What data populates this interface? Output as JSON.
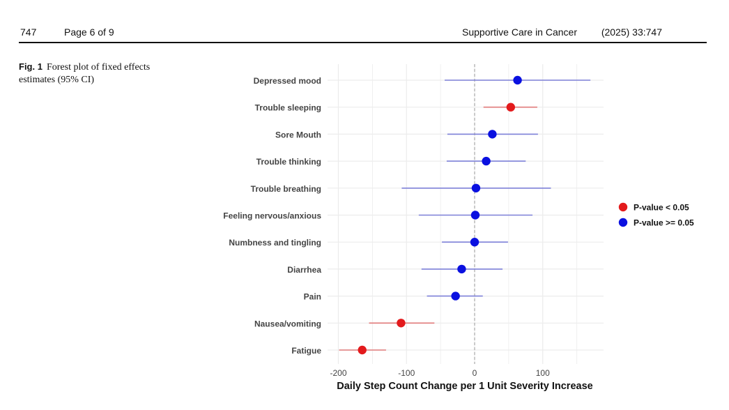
{
  "header": {
    "page_number": "747",
    "page_of": "Page 6 of 9",
    "journal": "Supportive Care in Cancer",
    "citation": "(2025) 33:747"
  },
  "figure": {
    "label": "Fig. 1",
    "caption": "Forest plot of fixed effects estimates (95% CI)"
  },
  "colors": {
    "significant": "#e31a1c",
    "nonsignificant": "#0a10e0",
    "sig_ci": "#e07a7a",
    "nonsig_ci": "#7d80d8",
    "grid": "#ececec",
    "zero_line": "#9a9a9a"
  },
  "chart_data": {
    "type": "forest",
    "title": "",
    "xlabel": "Daily Step Count Change per 1 Unit Severity Increase",
    "ylabel": "",
    "xlim": [
      -205,
      190
    ],
    "xticks": [
      -200,
      -100,
      0,
      100
    ],
    "grid": true,
    "reference_line": 0,
    "legend": {
      "position": "right",
      "entries": [
        {
          "label": "P-value < 0.05",
          "group": "significant"
        },
        {
          "label": "P-value >= 0.05",
          "group": "nonsignificant"
        }
      ]
    },
    "items": [
      {
        "label": "Depressed mood",
        "estimate": 63,
        "lower": -44,
        "upper": 170,
        "significant": false
      },
      {
        "label": "Trouble sleeping",
        "estimate": 53,
        "lower": 13,
        "upper": 92,
        "significant": true
      },
      {
        "label": "Sore Mouth",
        "estimate": 26,
        "lower": -40,
        "upper": 93,
        "significant": false
      },
      {
        "label": "Trouble thinking",
        "estimate": 17,
        "lower": -41,
        "upper": 75,
        "significant": false
      },
      {
        "label": "Trouble breathing",
        "estimate": 2,
        "lower": -107,
        "upper": 112,
        "significant": false
      },
      {
        "label": "Feeling nervous/anxious",
        "estimate": 1,
        "lower": -82,
        "upper": 85,
        "significant": false
      },
      {
        "label": "Numbness and tingling",
        "estimate": 0,
        "lower": -48,
        "upper": 49,
        "significant": false
      },
      {
        "label": "Diarrhea",
        "estimate": -19,
        "lower": -78,
        "upper": 41,
        "significant": false
      },
      {
        "label": "Pain",
        "estimate": -28,
        "lower": -70,
        "upper": 12,
        "significant": false
      },
      {
        "label": "Nausea/vomiting",
        "estimate": -108,
        "lower": -155,
        "upper": -59,
        "significant": true
      },
      {
        "label": "Fatigue",
        "estimate": -165,
        "lower": -199,
        "upper": -130,
        "significant": true
      }
    ]
  }
}
